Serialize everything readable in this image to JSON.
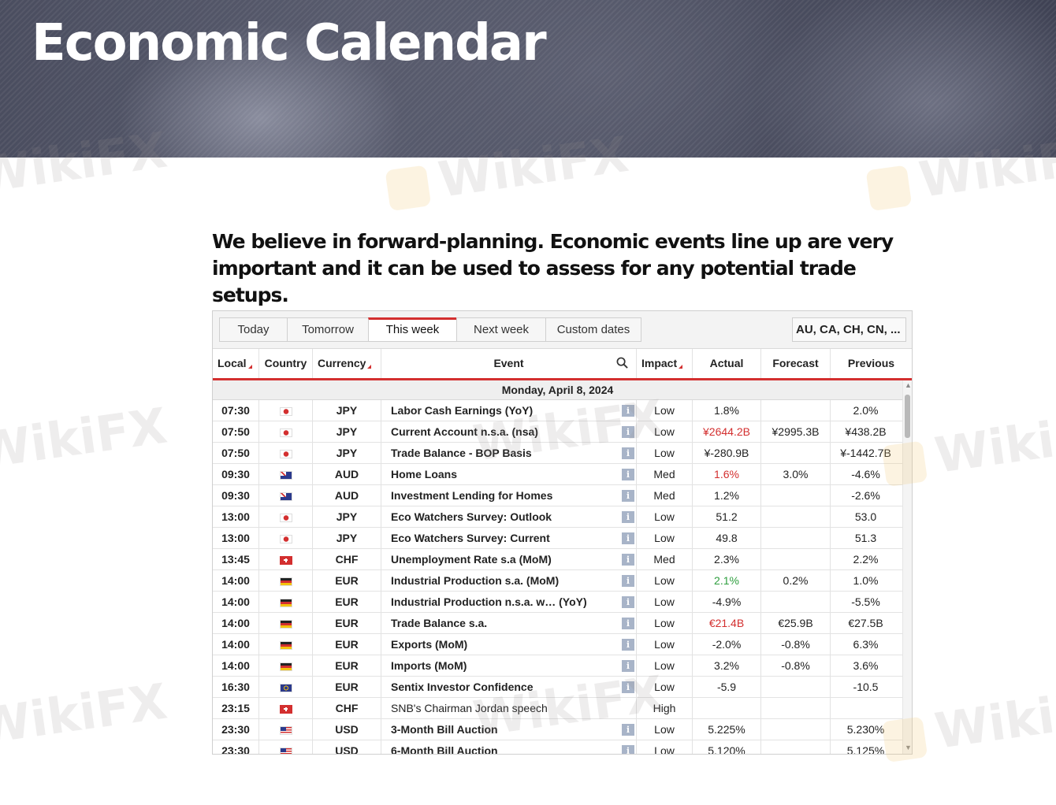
{
  "hero": {
    "title": "Economic Calendar"
  },
  "watermark": "WikiFX",
  "lead": "We believe in forward-planning. Economic events line up are very important and it can be used to assess for any potential trade setups.",
  "toolbar": {
    "tabs": [
      "Today",
      "Tomorrow",
      "This week",
      "Next week",
      "Custom dates"
    ],
    "active_tab": "This week",
    "country_filter": "AU, CA, CH, CN, ..."
  },
  "columns": {
    "local": "Local",
    "country": "Country",
    "currency": "Currency",
    "event": "Event",
    "impact": "Impact",
    "actual": "Actual",
    "forecast": "Forecast",
    "previous": "Previous"
  },
  "date_header": "Monday, April 8, 2024",
  "colors": {
    "accent": "#d32f2f",
    "positive": "#2e9e3e"
  },
  "rows": [
    {
      "time": "07:30",
      "flag": "jp",
      "currency": "JPY",
      "event": "Labor Cash Earnings (YoY)",
      "info": "i",
      "impact": "Low",
      "actual": "1.8%",
      "actual_color": "",
      "forecast": "",
      "previous": "2.0%"
    },
    {
      "time": "07:50",
      "flag": "jp",
      "currency": "JPY",
      "event": "Current Account n.s.a. (nsa)",
      "info": "i",
      "impact": "Low",
      "actual": "¥2644.2B",
      "actual_color": "red",
      "forecast": "¥2995.3B",
      "previous": "¥438.2B"
    },
    {
      "time": "07:50",
      "flag": "jp",
      "currency": "JPY",
      "event": "Trade Balance - BOP Basis",
      "info": "i",
      "impact": "Low",
      "actual": "¥-280.9B",
      "actual_color": "",
      "forecast": "",
      "previous": "¥-1442.7B"
    },
    {
      "time": "09:30",
      "flag": "au",
      "currency": "AUD",
      "event": "Home Loans",
      "info": "i",
      "impact": "Med",
      "actual": "1.6%",
      "actual_color": "red",
      "forecast": "3.0%",
      "previous": "-4.6%"
    },
    {
      "time": "09:30",
      "flag": "au",
      "currency": "AUD",
      "event": "Investment Lending for Homes",
      "info": "i",
      "impact": "Med",
      "actual": "1.2%",
      "actual_color": "",
      "forecast": "",
      "previous": "-2.6%"
    },
    {
      "time": "13:00",
      "flag": "jp",
      "currency": "JPY",
      "event": "Eco Watchers Survey: Outlook",
      "info": "i",
      "impact": "Low",
      "actual": "51.2",
      "actual_color": "",
      "forecast": "",
      "previous": "53.0"
    },
    {
      "time": "13:00",
      "flag": "jp",
      "currency": "JPY",
      "event": "Eco Watchers Survey: Current",
      "info": "i",
      "impact": "Low",
      "actual": "49.8",
      "actual_color": "",
      "forecast": "",
      "previous": "51.3"
    },
    {
      "time": "13:45",
      "flag": "ch",
      "currency": "CHF",
      "event": "Unemployment Rate s.a (MoM)",
      "info": "i",
      "impact": "Med",
      "actual": "2.3%",
      "actual_color": "",
      "forecast": "",
      "previous": "2.2%"
    },
    {
      "time": "14:00",
      "flag": "de",
      "currency": "EUR",
      "event": "Industrial Production s.a. (MoM)",
      "info": "i",
      "impact": "Low",
      "actual": "2.1%",
      "actual_color": "green",
      "forecast": "0.2%",
      "previous": "1.0%"
    },
    {
      "time": "14:00",
      "flag": "de",
      "currency": "EUR",
      "event": "Industrial Production n.s.a. w… (YoY)",
      "info": "i",
      "impact": "Low",
      "actual": "-4.9%",
      "actual_color": "",
      "forecast": "",
      "previous": "-5.5%"
    },
    {
      "time": "14:00",
      "flag": "de",
      "currency": "EUR",
      "event": "Trade Balance s.a.",
      "info": "i",
      "impact": "Low",
      "actual": "€21.4B",
      "actual_color": "red",
      "forecast": "€25.9B",
      "previous": "€27.5B"
    },
    {
      "time": "14:00",
      "flag": "de",
      "currency": "EUR",
      "event": "Exports (MoM)",
      "info": "i",
      "impact": "Low",
      "actual": "-2.0%",
      "actual_color": "",
      "forecast": "-0.8%",
      "previous": "6.3%"
    },
    {
      "time": "14:00",
      "flag": "de",
      "currency": "EUR",
      "event": "Imports (MoM)",
      "info": "i",
      "impact": "Low",
      "actual": "3.2%",
      "actual_color": "",
      "forecast": "-0.8%",
      "previous": "3.6%"
    },
    {
      "time": "16:30",
      "flag": "eu",
      "currency": "EUR",
      "event": "Sentix Investor Confidence",
      "info": "i",
      "impact": "Low",
      "actual": "-5.9",
      "actual_color": "",
      "forecast": "",
      "previous": "-10.5"
    },
    {
      "time": "23:15",
      "flag": "ch",
      "currency": "CHF",
      "event": "SNB's Chairman Jordan speech",
      "info": "",
      "impact": "High",
      "actual": "",
      "actual_color": "",
      "forecast": "",
      "previous": ""
    },
    {
      "time": "23:30",
      "flag": "us",
      "currency": "USD",
      "event": "3-Month Bill Auction",
      "info": "i",
      "impact": "Low",
      "actual": "5.225%",
      "actual_color": "",
      "forecast": "",
      "previous": "5.230%"
    },
    {
      "time": "23:30",
      "flag": "us",
      "currency": "USD",
      "event": "6-Month Bill Auction",
      "info": "i",
      "impact": "Low",
      "actual": "5.120%",
      "actual_color": "",
      "forecast": "",
      "previous": "5.125%"
    }
  ]
}
